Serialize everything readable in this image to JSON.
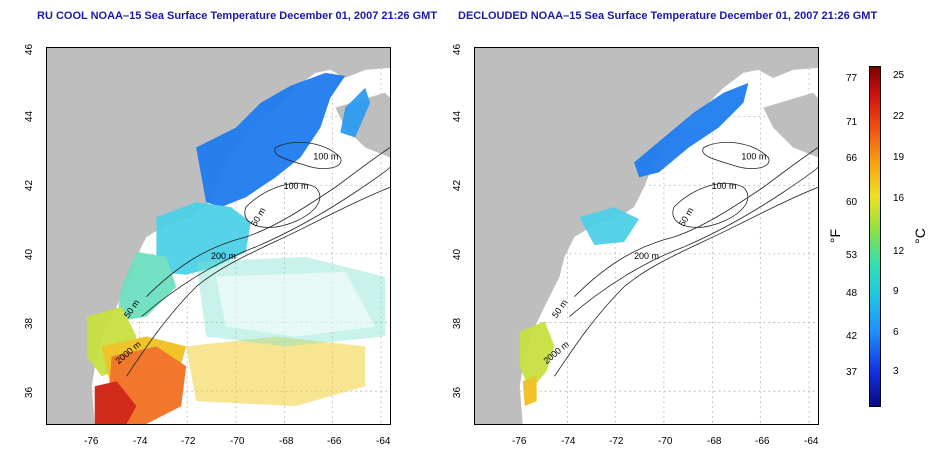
{
  "titles": {
    "left": "RU COOL NOAA–15 Sea Surface Temperature December 01, 2007 21:26 GMT",
    "right": "DECLOUDED NOAA–15 Sea Surface Temperature December 01, 2007 21:26 GMT"
  },
  "x_ticks": [
    "-76",
    "-74",
    "-72",
    "-70",
    "-68",
    "-66",
    "-64"
  ],
  "y_ticks": [
    "46",
    "44",
    "42",
    "40",
    "38",
    "36"
  ],
  "contours": {
    "left": [
      "100 m",
      "100 m",
      "50 m",
      "200 m",
      "50 m",
      "2000 m"
    ],
    "right": [
      "100 m",
      "100 m",
      "50 m",
      "200 m",
      "50 m",
      "2000 m"
    ]
  },
  "colorbar": {
    "fahrenheit": [
      "77",
      "71",
      "66",
      "60",
      "53",
      "48",
      "42",
      "37"
    ],
    "celsius": [
      "25",
      "22",
      "19",
      "16",
      "12",
      "9",
      "6",
      "3"
    ],
    "unit_f": "°F",
    "unit_c": "°C"
  },
  "colors": {
    "land": "#bebebe",
    "title": "#1a1aa6",
    "grid": "#b0b0b0"
  }
}
